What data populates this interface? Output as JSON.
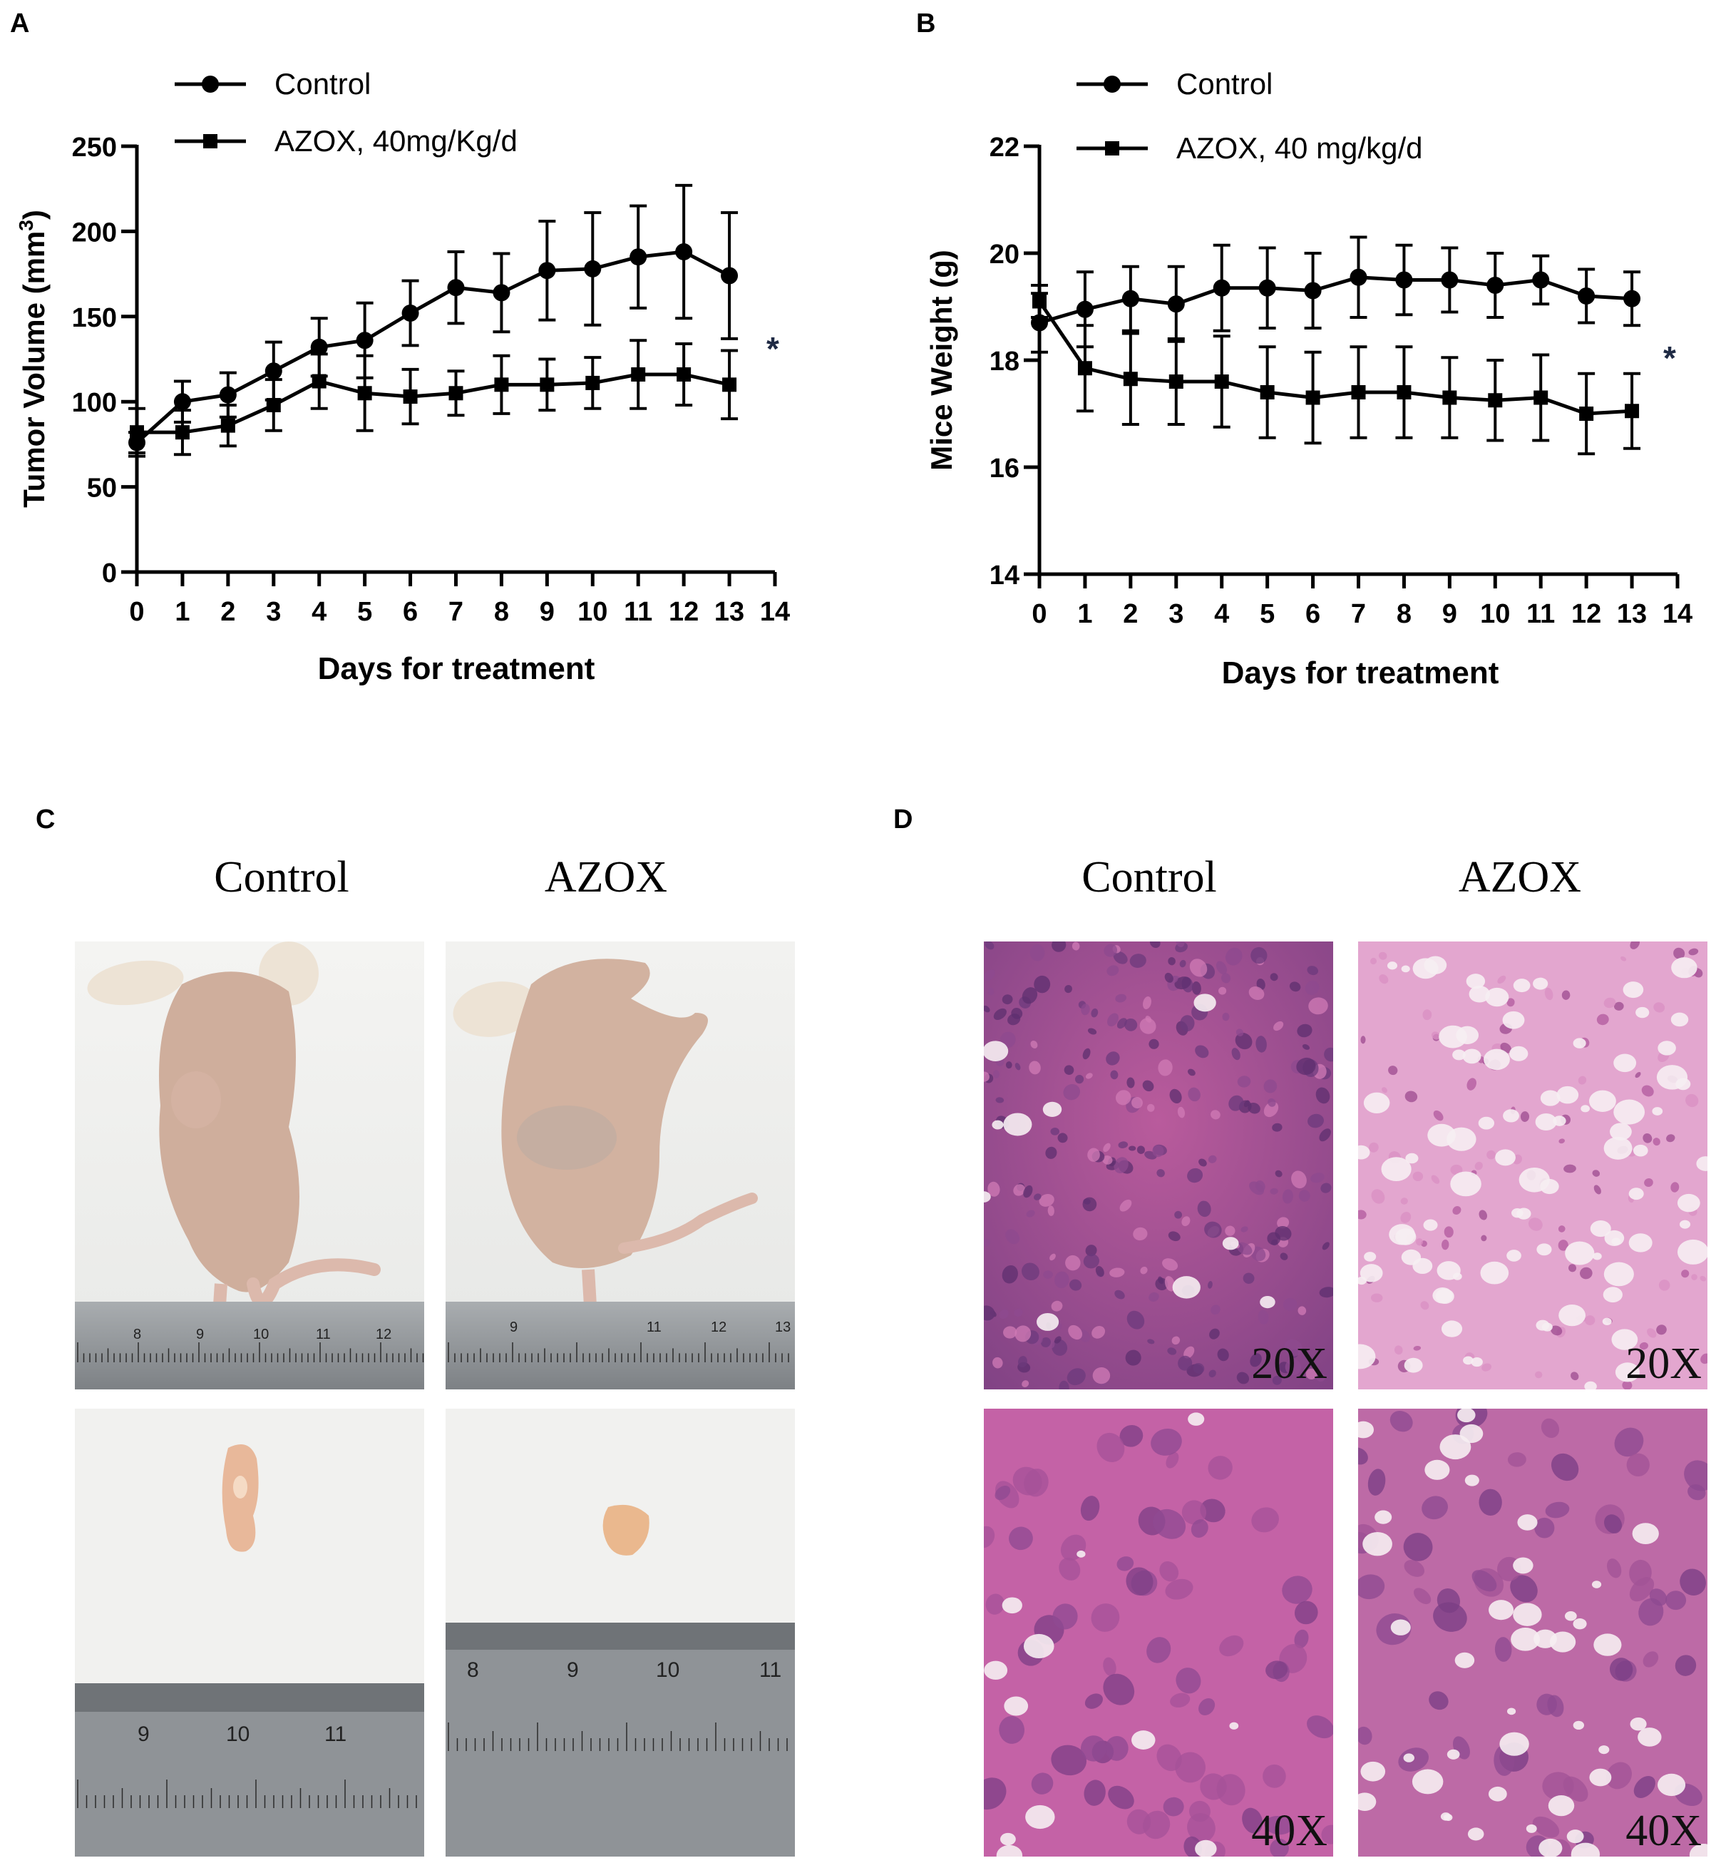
{
  "panels": {
    "a": "A",
    "b": "B",
    "c": "C",
    "d": "D"
  },
  "chart_data": [
    {
      "type": "line",
      "panel": "A",
      "xlabel": "Days for treatment",
      "ylabel": "Tumor Volume (mm",
      "ylabel_sup": "3",
      "ylabel_close": ")",
      "xlim": [
        0,
        14
      ],
      "ylim": [
        0,
        250
      ],
      "xticks": [
        "0",
        "1",
        "2",
        "3",
        "4",
        "5",
        "6",
        "7",
        "8",
        "9",
        "10",
        "11",
        "12",
        "13",
        "14"
      ],
      "yticks": [
        "0",
        "50",
        "100",
        "150",
        "200",
        "250"
      ],
      "ytick_values": [
        0,
        50,
        100,
        150,
        200,
        250
      ],
      "legend_placement": "top",
      "annotation": "*",
      "x": [
        0,
        1,
        2,
        3,
        4,
        5,
        6,
        7,
        8,
        9,
        10,
        11,
        12,
        13
      ],
      "series": [
        {
          "name": "Control",
          "marker": "circle",
          "values": [
            76,
            100,
            104,
            118,
            132,
            136,
            152,
            167,
            164,
            177,
            178,
            185,
            188,
            174
          ],
          "errors": [
            6,
            12,
            13,
            17,
            17,
            22,
            19,
            21,
            23,
            29,
            33,
            30,
            39,
            37
          ]
        },
        {
          "name": "AZOX, 40mg/Kg/d",
          "marker": "square",
          "values": [
            82,
            82,
            86,
            98,
            112,
            105,
            103,
            105,
            110,
            110,
            111,
            116,
            116,
            110
          ],
          "errors": [
            14,
            13,
            12,
            15,
            16,
            22,
            16,
            13,
            17,
            15,
            15,
            20,
            18,
            20
          ]
        }
      ]
    },
    {
      "type": "line",
      "panel": "B",
      "xlabel": "Days for treatment",
      "ylabel": "Mice Weight (g)",
      "xlim": [
        0,
        14
      ],
      "ylim": [
        14,
        22
      ],
      "xticks": [
        "0",
        "1",
        "2",
        "3",
        "4",
        "5",
        "6",
        "7",
        "8",
        "9",
        "10",
        "11",
        "12",
        "13",
        "14"
      ],
      "yticks": [
        "14",
        "16",
        "18",
        "20",
        "22"
      ],
      "ytick_values": [
        14,
        16,
        18,
        20,
        22
      ],
      "legend_placement": "top",
      "annotation": "*",
      "x": [
        0,
        1,
        2,
        3,
        4,
        5,
        6,
        7,
        8,
        9,
        10,
        11,
        12,
        13
      ],
      "series": [
        {
          "name": "Control",
          "marker": "circle",
          "values": [
            18.7,
            18.95,
            19.15,
            19.05,
            19.35,
            19.35,
            19.3,
            19.55,
            19.5,
            19.5,
            19.4,
            19.5,
            19.2,
            19.15
          ],
          "errors": [
            0.55,
            0.7,
            0.6,
            0.7,
            0.8,
            0.75,
            0.7,
            0.75,
            0.65,
            0.6,
            0.6,
            0.45,
            0.5,
            0.5
          ]
        },
        {
          "name": "AZOX, 40 mg/kg/d",
          "marker": "square",
          "values": [
            19.1,
            17.85,
            17.65,
            17.6,
            17.6,
            17.4,
            17.3,
            17.4,
            17.4,
            17.3,
            17.25,
            17.3,
            17.0,
            17.05
          ],
          "errors": [
            0.3,
            0.8,
            0.85,
            0.8,
            0.85,
            0.85,
            0.85,
            0.85,
            0.85,
            0.75,
            0.75,
            0.8,
            0.75,
            0.7
          ]
        }
      ]
    }
  ],
  "panel_c": {
    "col_left": "Control",
    "col_right": "AZOX",
    "ruler_top_left": [
      "8",
      "9",
      "10",
      "11",
      "12"
    ],
    "ruler_top_right": [
      "9",
      "11",
      "12",
      "13"
    ],
    "ruler_bottom_left": [
      "9",
      "10",
      "11"
    ],
    "ruler_bottom_right": [
      "8",
      "9",
      "10",
      "11"
    ]
  },
  "panel_d": {
    "col_left": "Control",
    "col_right": "AZOX",
    "mag_top": "20X",
    "mag_bottom": "40X"
  },
  "colors": {
    "line": "#000000",
    "asterisk": "#1f2a44",
    "stain_pink": "#c565a8",
    "stain_dark": "#7a3a86",
    "skin": "#d9b6a4",
    "ruler": "#8c9094"
  }
}
